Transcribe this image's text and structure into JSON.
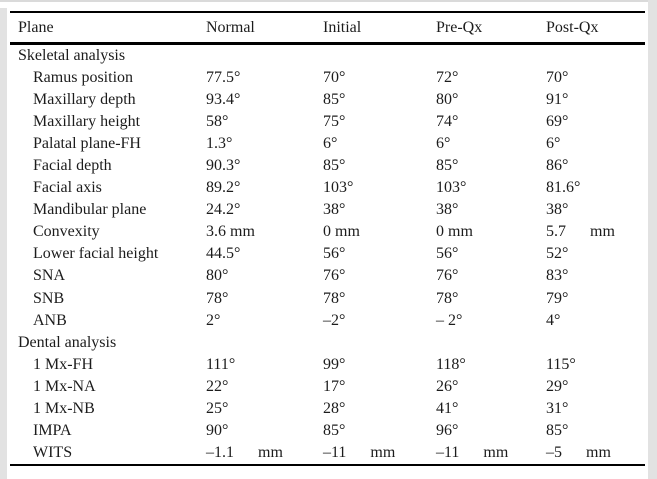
{
  "colors": {
    "rule": "#000000",
    "text": "#1c1c1c",
    "page_edge": "#e2e2e2"
  },
  "table": {
    "columns": [
      "Plane",
      "Normal",
      "Initial",
      "Pre-Qx",
      "Post-Qx"
    ],
    "sections": [
      {
        "label": "Skeletal analysis",
        "rows": [
          {
            "plane": "Ramus position",
            "values": [
              "77.5°",
              "70°",
              "72°",
              "70°"
            ]
          },
          {
            "plane": "Maxillary depth",
            "values": [
              "93.4°",
              "85°",
              "80°",
              "91°"
            ]
          },
          {
            "plane": "Maxillary height",
            "values": [
              "58°",
              "75°",
              "74°",
              "69°"
            ]
          },
          {
            "plane": "Palatal plane-FH",
            "values": [
              "1.3°",
              "6°",
              "6°",
              "6°"
            ]
          },
          {
            "plane": "Facial depth",
            "values": [
              "90.3°",
              "85°",
              "85°",
              "86°"
            ]
          },
          {
            "plane": "Facial axis",
            "values": [
              "89.2°",
              "103°",
              "103°",
              "81.6°"
            ]
          },
          {
            "plane": "Mandibular plane",
            "values": [
              "24.2°",
              "38°",
              "38°",
              "38°"
            ]
          },
          {
            "plane": "Convexity",
            "values": [
              "3.6 mm",
              "0 mm",
              "0 mm",
              "5.7      mm"
            ]
          },
          {
            "plane": "Lower facial height",
            "values": [
              "44.5°",
              "56°",
              "56°",
              "52°"
            ]
          },
          {
            "plane": "SNA",
            "values": [
              "80°",
              "76°",
              "76°",
              "83°"
            ]
          },
          {
            "plane": "SNB",
            "values": [
              "78°",
              "78°",
              "78°",
              "79°"
            ]
          },
          {
            "plane": "ANB",
            "values": [
              "2°",
              "–2°",
              "– 2°",
              "4°"
            ]
          }
        ]
      },
      {
        "label": "Dental analysis",
        "rows": [
          {
            "plane": "1 Mx-FH",
            "values": [
              "111°",
              "99°",
              "118°",
              "115°"
            ]
          },
          {
            "plane": "1 Mx-NA",
            "values": [
              "22°",
              "17°",
              "26°",
              "29°"
            ]
          },
          {
            "plane": "1 Mx-NB",
            "values": [
              "25°",
              "28°",
              "41°",
              "31°"
            ]
          },
          {
            "plane": "IMPA",
            "values": [
              "90°",
              "85°",
              "96°",
              "85°"
            ]
          },
          {
            "plane": "WITS",
            "values": [
              "–1.1      mm",
              "–11      mm",
              "–11      mm",
              "–5      mm"
            ]
          }
        ]
      }
    ]
  }
}
